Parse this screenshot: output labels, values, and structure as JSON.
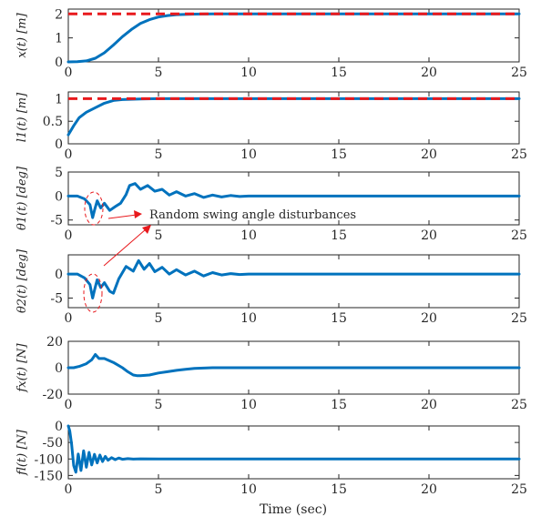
{
  "chart_data": [
    {
      "type": "line",
      "ylabel": "x(t) [m]",
      "xlim": [
        0,
        25
      ],
      "ylim": [
        0,
        2.2
      ],
      "yticks": [
        0,
        1,
        2
      ],
      "xticks": [
        0,
        5,
        10,
        15,
        20,
        25
      ],
      "series": [
        {
          "role": "response",
          "color": "#0072bd",
          "x": [
            0,
            0.5,
            1,
            1.5,
            2,
            2.5,
            3,
            3.5,
            4,
            4.5,
            5,
            5.5,
            6,
            7,
            8,
            10,
            15,
            20,
            25
          ],
          "y": [
            0,
            0.01,
            0.04,
            0.15,
            0.38,
            0.7,
            1.05,
            1.35,
            1.6,
            1.76,
            1.87,
            1.93,
            1.97,
            1.99,
            2,
            2,
            2,
            2,
            2
          ]
        },
        {
          "role": "reference",
          "color": "#e8191d",
          "dashed": true,
          "x": [
            0,
            25
          ],
          "y": [
            2,
            2
          ]
        }
      ]
    },
    {
      "type": "line",
      "ylabel": "l1(t) [m]",
      "xlim": [
        0,
        25
      ],
      "ylim": [
        0,
        1.15
      ],
      "yticks": [
        0,
        0.5,
        1
      ],
      "xticks": [
        0,
        5,
        10,
        15,
        20,
        25
      ],
      "series": [
        {
          "role": "response",
          "color": "#0072bd",
          "x": [
            0,
            0.3,
            0.6,
            1,
            1.5,
            2,
            2.5,
            3,
            4,
            5,
            10,
            25
          ],
          "y": [
            0.2,
            0.4,
            0.58,
            0.7,
            0.8,
            0.9,
            0.96,
            0.98,
            0.995,
            1,
            1,
            1
          ]
        },
        {
          "role": "reference",
          "color": "#e8191d",
          "dashed": true,
          "x": [
            0,
            25
          ],
          "y": [
            1,
            1
          ]
        }
      ]
    },
    {
      "type": "line",
      "ylabel": "θ1(t) [deg]",
      "xlim": [
        0,
        25
      ],
      "ylim": [
        -6,
        5
      ],
      "yticks": [
        -5,
        0,
        5
      ],
      "xticks": [
        0,
        5,
        10,
        15,
        20,
        25
      ],
      "series": [
        {
          "role": "response",
          "color": "#0072bd",
          "x": [
            0,
            0.5,
            0.9,
            1.2,
            1.35,
            1.45,
            1.6,
            1.8,
            2,
            2.3,
            2.6,
            2.9,
            3.2,
            3.4,
            3.7,
            4,
            4.4,
            4.8,
            5.2,
            5.6,
            6,
            6.5,
            7,
            7.5,
            8,
            8.5,
            9,
            9.5,
            10,
            11,
            12,
            13,
            14,
            15,
            20,
            25
          ],
          "y": [
            0,
            0,
            -0.6,
            -1.8,
            -4.5,
            -3,
            -1,
            -2.5,
            -1.5,
            -3,
            -2.2,
            -1.5,
            0.3,
            2.2,
            2.6,
            1.4,
            2.2,
            1,
            1.4,
            0.2,
            0.9,
            0,
            0.5,
            -0.3,
            0.2,
            -0.2,
            0.1,
            -0.1,
            0,
            0,
            0,
            0,
            0,
            0,
            0,
            0
          ]
        }
      ],
      "annotation": "Random swing angle disturbances"
    },
    {
      "type": "line",
      "ylabel": "θ2(t) [deg]",
      "xlim": [
        0,
        25
      ],
      "ylim": [
        -7,
        4
      ],
      "yticks": [
        -5,
        0
      ],
      "xticks": [
        0,
        5,
        10,
        15,
        20,
        25
      ],
      "series": [
        {
          "role": "response",
          "color": "#0072bd",
          "x": [
            0,
            0.5,
            0.9,
            1.2,
            1.35,
            1.45,
            1.6,
            1.8,
            2,
            2.3,
            2.5,
            2.8,
            3.2,
            3.6,
            3.9,
            4.2,
            4.5,
            4.8,
            5.2,
            5.6,
            6,
            6.5,
            7,
            7.5,
            8,
            8.5,
            9,
            9.5,
            10,
            11,
            12,
            15,
            20,
            25
          ],
          "y": [
            0,
            0,
            -0.8,
            -2.2,
            -5,
            -3.4,
            -1.2,
            -2.8,
            -1.8,
            -3.6,
            -4,
            -1,
            1.6,
            0.6,
            2.8,
            1,
            2.2,
            0.5,
            1.4,
            0,
            0.9,
            -0.2,
            0.6,
            -0.4,
            0.3,
            -0.2,
            0.1,
            -0.1,
            0,
            0,
            0,
            0,
            0,
            0
          ]
        }
      ]
    },
    {
      "type": "line",
      "ylabel": "fx(t) [N]",
      "xlim": [
        0,
        25
      ],
      "ylim": [
        -20,
        20
      ],
      "yticks": [
        -20,
        0,
        20
      ],
      "xticks": [
        0,
        5,
        10,
        15,
        20,
        25
      ],
      "series": [
        {
          "role": "response",
          "color": "#0072bd",
          "x": [
            0,
            0.3,
            0.6,
            1,
            1.3,
            1.5,
            1.7,
            2,
            2.5,
            3,
            3.3,
            3.6,
            3.8,
            4,
            4.5,
            5,
            5.5,
            6,
            6.5,
            7,
            8,
            10,
            15,
            20,
            25
          ],
          "y": [
            0,
            0,
            1,
            3,
            6,
            10,
            7,
            7,
            4,
            0,
            -3,
            -5.5,
            -6,
            -6,
            -5.5,
            -4,
            -3,
            -2,
            -1.2,
            -0.5,
            0,
            0,
            0,
            0,
            0
          ]
        }
      ]
    },
    {
      "type": "line",
      "ylabel": "fl(t) [N]",
      "xlim": [
        0,
        25
      ],
      "ylim": [
        -160,
        0
      ],
      "yticks": [
        -150,
        -100,
        -50,
        0
      ],
      "xticks": [
        0,
        5,
        10,
        15,
        20,
        25
      ],
      "xlabel": "Time (sec)",
      "series": [
        {
          "role": "response",
          "color": "#0072bd",
          "x": [
            0,
            0.08,
            0.18,
            0.3,
            0.42,
            0.55,
            0.7,
            0.85,
            1,
            1.15,
            1.3,
            1.45,
            1.6,
            1.75,
            1.9,
            2.05,
            2.2,
            2.4,
            2.6,
            2.8,
            3,
            3.3,
            3.6,
            4,
            5,
            8,
            12,
            15,
            20,
            25
          ],
          "y": [
            0,
            -15,
            -55,
            -120,
            -140,
            -85,
            -135,
            -75,
            -125,
            -80,
            -118,
            -86,
            -112,
            -88,
            -108,
            -92,
            -104,
            -96,
            -102,
            -97,
            -101,
            -99,
            -100.5,
            -99.5,
            -100,
            -100,
            -100,
            -100,
            -100,
            -100
          ]
        }
      ]
    }
  ],
  "xlabel": "Time (sec)",
  "annotation_text": "Random swing angle disturbances"
}
